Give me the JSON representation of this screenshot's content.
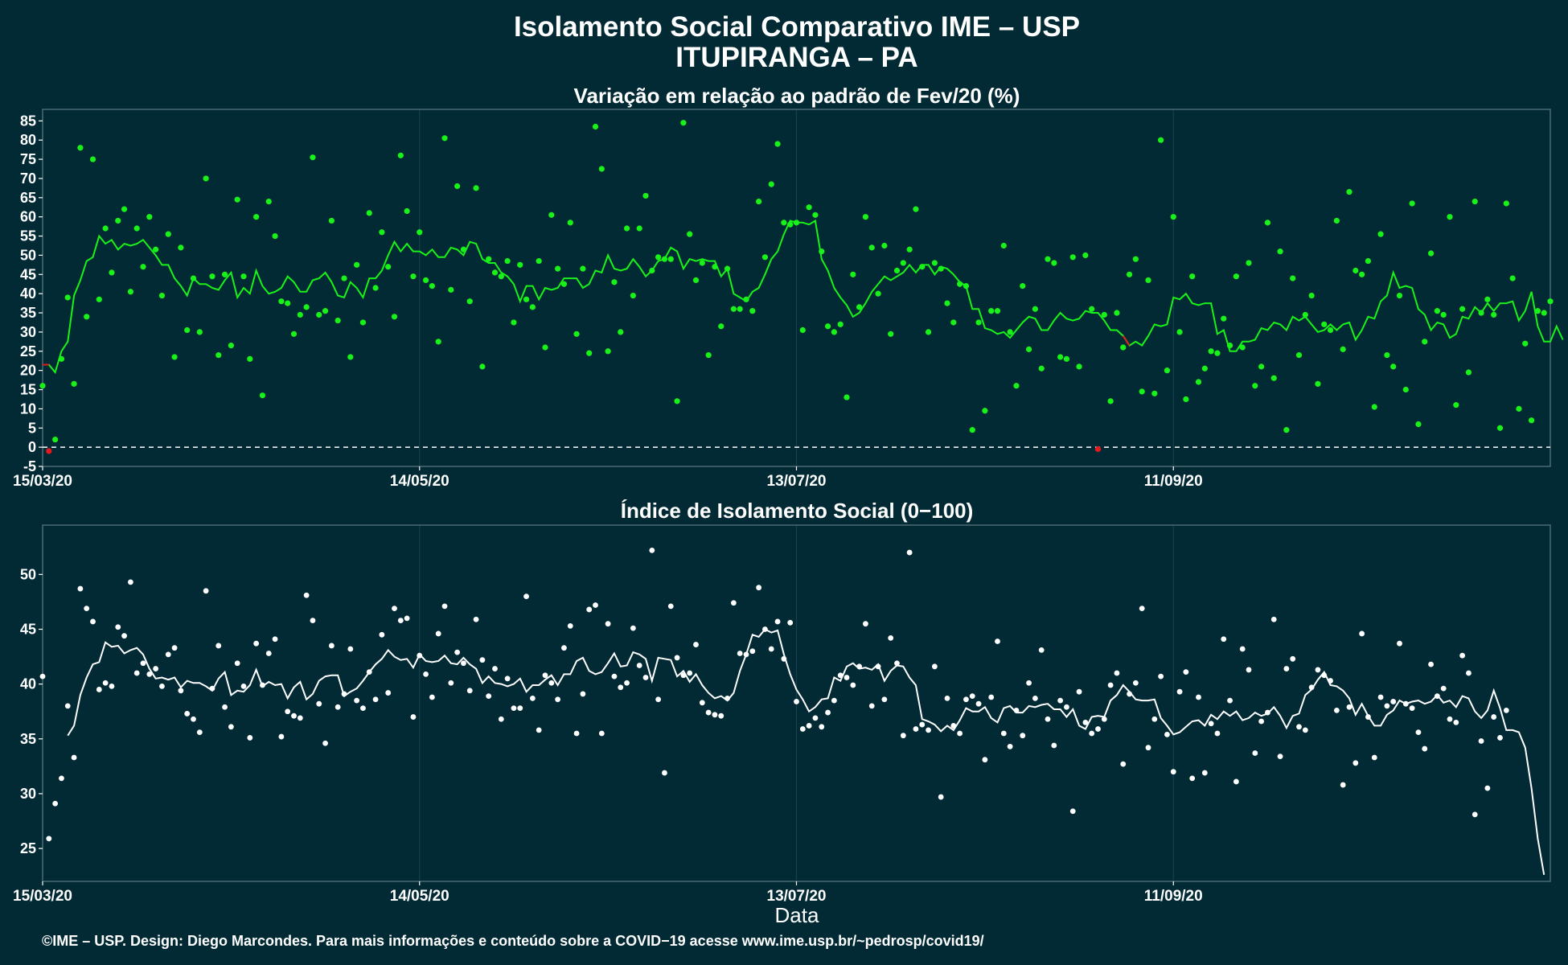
{
  "title_line1": "Isolamento Social Comparativo IME – USP",
  "title_line2": "ITUPIRANGA – PA",
  "xlabel": "Data",
  "caption": "©IME – USP. Design: Diego Marcondes. Para mais informações e conteúdo sobre a COVID−19 acesse www.ime.usp.br/~pedrosp/covid19/",
  "colors": {
    "background": "#022a35",
    "panel_border": "#4d6a73",
    "grid": "#16404b",
    "positive": "#19f219",
    "negative": "#e41a1c",
    "index": "#ffffff"
  },
  "chart_data": [
    {
      "type": "scatter",
      "title": "Variação em relação ao padrão de Fev/20 (%)",
      "x_ticks": [
        "15/03/20",
        "14/05/20",
        "13/07/20",
        "11/09/20"
      ],
      "x_tick_days": [
        0,
        60,
        120,
        180
      ],
      "y_ticks": [
        -5,
        0,
        5,
        10,
        15,
        20,
        25,
        30,
        35,
        40,
        45,
        50,
        55,
        60,
        65,
        70,
        75,
        80,
        85
      ],
      "ylim": [
        -5,
        88
      ],
      "xlim_days": [
        0,
        240
      ],
      "reference_line": 0,
      "point_step_days": 1,
      "values": [
        16,
        -1,
        2,
        23,
        39,
        16.5,
        78,
        34,
        75,
        38.5,
        57,
        45.5,
        59,
        62,
        40.5,
        57,
        47,
        60,
        51.5,
        39.5,
        55.5,
        23.5,
        52,
        30.5,
        44,
        30,
        70,
        44.5,
        24,
        45,
        26.5,
        64.5,
        44.5,
        23,
        60,
        13.5,
        64,
        55,
        38,
        37.5,
        29.5,
        34.5,
        36.5,
        75.5,
        34.5,
        35.5,
        59,
        33,
        44,
        23.5,
        47.5,
        32.5,
        61,
        41.5,
        56,
        47,
        34,
        76,
        61.5,
        44.5,
        56,
        43.5,
        42,
        27.5,
        80.5,
        41,
        68,
        51.5,
        38,
        67.5,
        21,
        49,
        45.5,
        44.5,
        48.5,
        32.5,
        47.5,
        38.5,
        36.5,
        48.5,
        26,
        60.5,
        46.5,
        42.5,
        58.5,
        29.5,
        46.5,
        24.5,
        83.5,
        72.5,
        25,
        43,
        30,
        57,
        39.5,
        57,
        65.5,
        46,
        49.5,
        49,
        49,
        12,
        84.5,
        55.5,
        43.5,
        48,
        24,
        47,
        31.5,
        46.5,
        36,
        36,
        38.5,
        35.5,
        64,
        49.5,
        68.5,
        79,
        58.5,
        58,
        58.5,
        30.5,
        62.5,
        60.5,
        51,
        31.5,
        30,
        32,
        13,
        45,
        36.5,
        60,
        52,
        40,
        52.5,
        29.5,
        46,
        48,
        51.5,
        62,
        47,
        30,
        48,
        46.5,
        37.5,
        32.5,
        42.5,
        42,
        4.5,
        32.5,
        9.5,
        35.5,
        35.5,
        52.5,
        30,
        16,
        42,
        25.5,
        36,
        20.5,
        49,
        48,
        23.5,
        23,
        49.5,
        21,
        50,
        36,
        -0.5,
        34.5,
        12,
        35,
        26,
        45,
        49,
        14.5,
        43.5,
        14,
        80,
        20,
        60,
        30,
        12.5,
        44.5,
        17,
        20.5,
        25,
        24.5,
        33.5,
        26.5,
        44.5,
        26,
        48,
        16,
        21,
        58.5,
        18,
        51,
        4.5,
        44,
        24,
        34.5,
        39.5,
        16.5,
        32,
        30.5,
        59,
        25.5,
        66.5,
        46,
        45,
        48.5,
        10.5,
        55.5,
        24,
        21,
        39.5,
        15,
        63.5,
        6,
        27.5,
        50.5,
        35.5,
        34.5,
        60,
        11,
        36,
        19.5,
        64,
        35,
        38.5,
        34.5,
        5,
        63.5,
        44,
        10,
        27,
        7,
        35.5,
        35,
        38
      ],
      "moving_average": [
        21.5,
        21.5,
        19.5,
        25,
        27.5,
        39.5,
        43.5,
        48.5,
        49.5,
        55,
        53,
        54,
        51.5,
        53,
        52.5,
        53,
        54,
        52,
        50,
        47.5,
        47.5,
        44,
        42,
        39.5,
        44,
        42.5,
        42.5,
        41.5,
        41,
        43.5,
        45.5,
        39,
        41.5,
        40,
        46,
        42,
        40,
        40.5,
        41.5,
        44.5,
        43,
        40.5,
        40.5,
        43.5,
        44,
        45.5,
        43,
        39.5,
        39,
        43,
        41.5,
        39,
        44,
        44,
        46,
        50,
        53.5,
        51,
        53,
        51,
        51,
        50,
        51.5,
        49.5,
        49.5,
        52,
        51.5,
        50,
        53.5,
        53,
        49,
        48,
        48,
        45.5,
        44.5,
        42.5,
        38,
        42,
        42,
        38.5,
        41.5,
        41,
        41.5,
        44,
        44,
        44,
        41.5,
        42.5,
        46,
        45.5,
        50,
        46.5,
        46,
        46.5,
        49,
        47,
        44.5,
        46,
        48.5,
        49,
        52,
        51,
        46.5,
        49,
        48.5,
        49,
        48.5,
        48.5,
        44.5,
        46.5,
        40,
        39,
        38,
        40.5,
        41.5,
        45,
        49,
        51,
        55.5,
        59,
        58.5,
        58.5,
        58,
        59,
        49,
        46,
        41.5,
        39,
        37,
        34,
        35,
        37.5,
        40.5,
        42.5,
        44.5,
        43.5,
        44.5,
        45.5,
        47.5,
        45.5,
        47.5,
        47.5,
        45,
        47,
        46.5,
        45,
        43,
        42,
        36,
        36,
        31,
        30.5,
        29.5,
        30,
        28.5,
        30.5,
        32.5,
        34,
        33.5,
        30.5,
        30.5,
        33,
        35,
        33.5,
        33,
        33.5,
        35.5,
        35,
        35,
        33,
        30.5,
        30.5,
        29,
        26.5,
        27.5,
        26.5,
        29,
        32,
        31.5,
        32,
        39,
        38.5,
        40,
        37.5,
        37,
        37.5,
        37.5,
        29.5,
        30.5,
        25,
        25,
        27.5,
        27.5,
        28,
        31,
        30.5,
        32.5,
        32,
        30.5,
        34,
        33,
        34,
        32,
        30,
        30.5,
        32,
        30.5,
        32,
        32.5,
        28,
        30.5,
        34,
        33.5,
        38,
        39.5,
        45.5,
        41.5,
        42,
        41.5,
        36,
        34.5,
        30.5,
        32.5,
        32,
        28.5,
        29.5,
        34,
        33.5,
        36.5,
        35,
        37.5,
        35.5,
        37.5,
        37.5,
        38,
        33,
        35.5,
        40.5,
        31.5,
        27.5,
        27.5,
        31.5,
        28
      ],
      "negative_segments": [
        [
          0,
          1
        ],
        [
          172,
          173
        ]
      ]
    },
    {
      "type": "scatter",
      "title": "Índice de Isolamento Social (0−100)",
      "x_ticks": [
        "15/03/20",
        "14/05/20",
        "13/07/20",
        "11/09/20"
      ],
      "x_tick_days": [
        0,
        60,
        120,
        180
      ],
      "y_ticks": [
        25,
        30,
        35,
        40,
        45,
        50
      ],
      "ylim": [
        22,
        54.5
      ],
      "xlim_days": [
        0,
        240
      ],
      "point_step_days": 1,
      "values": [
        40.7,
        25.9,
        29.1,
        31.4,
        38,
        33.3,
        48.7,
        46.9,
        45.7,
        39.5,
        40.1,
        39.8,
        45.2,
        44.4,
        49.3,
        41,
        41.9,
        40.9,
        41.4,
        39.8,
        42.7,
        43.3,
        39.4,
        37.3,
        36.8,
        35.6,
        48.5,
        39.6,
        43.5,
        37.9,
        36.1,
        41.9,
        39.8,
        35.1,
        43.7,
        39.9,
        42.8,
        44.1,
        35.2,
        37.5,
        37.1,
        36.9,
        48.1,
        45.8,
        38.2,
        34.6,
        43.5,
        37.9,
        39.1,
        43.2,
        38.5,
        37.8,
        41.1,
        38.6,
        44.5,
        39.2,
        46.9,
        45.8,
        46,
        37,
        42.6,
        40.9,
        38.8,
        44.6,
        47.1,
        40.1,
        42.9,
        41.9,
        39.4,
        45.9,
        42.2,
        38.9,
        41.4,
        36.8,
        40.5,
        37.8,
        37.8,
        48,
        38.7,
        35.8,
        40.8,
        40.1,
        38.6,
        43.3,
        45.3,
        35.5,
        39.1,
        46.8,
        47.2,
        35.5,
        45.5,
        40.7,
        39.7,
        40.1,
        45.1,
        41.7,
        40.6,
        52.2,
        38.6,
        31.9,
        47.1,
        42.4,
        40.8,
        41,
        43.6,
        38.3,
        37.4,
        37.2,
        37.1,
        38.7,
        47.4,
        42.8,
        42.7,
        43,
        48.8,
        45,
        43.2,
        45.7,
        42.3,
        45.6,
        38.4,
        35.9,
        36.2,
        36.9,
        36.1,
        37.4,
        38.5,
        40.8,
        40.6,
        39.9,
        41.6,
        45.5,
        38,
        41.6,
        38.6,
        44.2,
        41.9,
        35.3,
        52,
        35.9,
        36.3,
        35.8,
        41.6,
        29.7,
        38.7,
        36.2,
        35.5,
        38.6,
        38.9,
        38.2,
        33.1,
        38.8,
        43.9,
        35.5,
        34.3,
        37.6,
        35.3,
        40.1,
        38.7,
        43.1,
        36.8,
        34.4,
        38.5,
        37.9,
        28.4,
        39.3,
        36.5,
        35.5,
        35.9,
        36.8,
        39.9,
        41,
        32.7,
        39.1,
        40.1,
        46.9,
        34.2,
        36.8,
        40.7,
        35.4,
        32,
        39.3,
        41.1,
        31.4,
        38.8,
        31.9,
        36.4,
        35.5,
        44.1,
        38.5,
        31.1,
        43.2,
        41.3,
        33.7,
        36.6,
        37.4,
        45.9,
        33.4,
        41.4,
        42.3,
        36.1,
        35.8,
        39.7,
        41.3,
        40.8,
        40.3,
        37.6,
        30.8,
        37.9,
        32.8,
        44.6,
        37,
        33.3,
        38.8,
        38,
        38.4,
        43.7,
        38.2,
        37.8,
        35.6,
        34.1,
        41.8,
        38.9,
        39.6,
        36.8,
        36.5,
        42.6,
        41,
        28.1,
        34.8,
        30.5,
        37,
        35.1,
        37.6
      ],
      "moving_average": [
        null,
        null,
        null,
        null,
        35.3,
        36.2,
        39,
        40.6,
        41.8,
        42,
        43.8,
        43.4,
        43.5,
        42.8,
        43.1,
        43.3,
        42.7,
        41.4,
        40.5,
        40.6,
        40.4,
        40.6,
        39.7,
        40.3,
        40.1,
        40.1,
        39.8,
        39.4,
        40.5,
        41.1,
        39,
        39.4,
        39.3,
        39.9,
        41.3,
        39.8,
        40.2,
        39.9,
        40,
        38.7,
        39.7,
        40.2,
        38.6,
        39.1,
        40.3,
        40.7,
        40.8,
        40.8,
        38.9,
        39.3,
        39.6,
        40.3,
        41.1,
        41.8,
        42.3,
        43.1,
        42.5,
        42.2,
        42.3,
        41.5,
        42.7,
        42.1,
        42,
        42.1,
        42.6,
        41.9,
        41.8,
        42.4,
        41.8,
        41.4,
        40.1,
        40.7,
        40.1,
        40,
        39.8,
        40,
        40.5,
        39.3,
        39.9,
        39.9,
        40.4,
        40.8,
        39.9,
        40.9,
        40.9,
        42.1,
        42.4,
        41.2,
        40.9,
        41.1,
        41.9,
        42.8,
        41.6,
        41.7,
        42.9,
        42.7,
        42.3,
        40.3,
        42.4,
        42.3,
        42.2,
        40.7,
        41.2,
        40.2,
        40.9,
        39.9,
        39.2,
        38.7,
        38.9,
        38.5,
        39.2,
        41.2,
        42.7,
        44.5,
        44.3,
        45,
        44.7,
        44.9,
        42.7,
        40.9,
        39.5,
        38.6,
        37.5,
        37.9,
        38.6,
        38.7,
        40.6,
        40.3,
        41.6,
        41.9,
        41.4,
        41.5,
        41.3,
        41.8,
        40.3,
        41.2,
        41.7,
        41.6,
        40.6,
        39.9,
        36.8,
        36.6,
        36.3,
        35.7,
        36.2,
        35.8,
        36.7,
        37.8,
        37.5,
        37.5,
        37.9,
        36.9,
        36.5,
        37.8,
        38,
        37.4,
        37.4,
        38,
        37.9,
        38.1,
        38.2,
        37.7,
        37.7,
        37,
        37.7,
        36.2,
        35.9,
        37,
        37.1,
        37,
        38.5,
        39,
        39.9,
        39.3,
        38.6,
        38.5,
        38.5,
        38.6,
        36.9,
        36.2,
        35.4,
        35.6,
        36.1,
        36.6,
        36.7,
        36.2,
        37.2,
        36.8,
        37.5,
        37.1,
        37.5,
        36.7,
        36.9,
        37.4,
        37.1,
        37.3,
        37.9,
        37.1,
        36,
        37.1,
        37.3,
        39,
        39.5,
        40.4,
        41.1,
        39.9,
        39.8,
        39.4,
        38.7,
        37.2,
        38.2,
        37.1,
        36.2,
        36.2,
        37.2,
        37.6,
        38.5,
        38.2,
        38.4,
        38.5,
        38.2,
        38.4,
        39,
        38.3,
        38.5,
        37.9,
        38.9,
        38.7,
        37.5,
        36.9,
        37.6,
        39.4,
        37.8,
        35.8,
        35.8,
        35.6,
        34.2,
        30.5,
        25.9,
        22.6
      ]
    }
  ]
}
